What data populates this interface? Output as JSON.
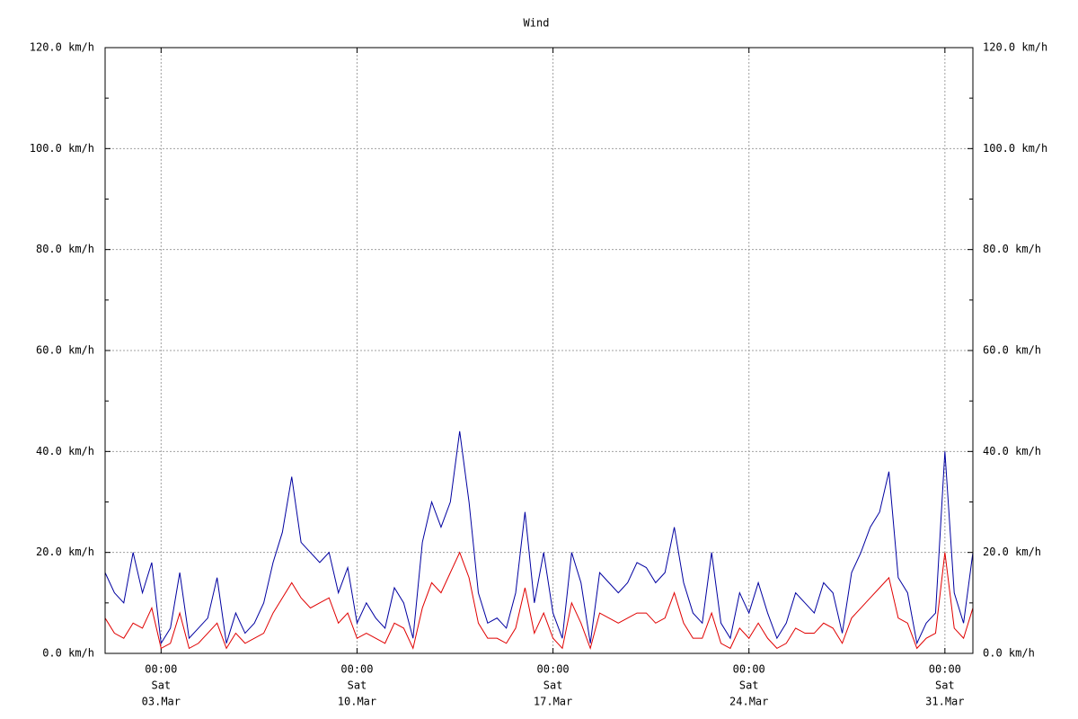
{
  "chart_data": {
    "type": "line",
    "title": "Wind",
    "x": [
      "01.Mar 00:00",
      "01.Mar 08:00",
      "01.Mar 16:00",
      "02.Mar 00:00",
      "02.Mar 08:00",
      "02.Mar 16:00",
      "03.Mar 00:00",
      "03.Mar 08:00",
      "03.Mar 16:00",
      "04.Mar 00:00",
      "04.Mar 08:00",
      "04.Mar 16:00",
      "05.Mar 00:00",
      "05.Mar 08:00",
      "05.Mar 16:00",
      "06.Mar 00:00",
      "06.Mar 08:00",
      "06.Mar 16:00",
      "07.Mar 00:00",
      "07.Mar 08:00",
      "07.Mar 16:00",
      "08.Mar 00:00",
      "08.Mar 08:00",
      "08.Mar 16:00",
      "09.Mar 00:00",
      "09.Mar 08:00",
      "09.Mar 16:00",
      "10.Mar 00:00",
      "10.Mar 08:00",
      "10.Mar 16:00",
      "11.Mar 00:00",
      "11.Mar 08:00",
      "11.Mar 16:00",
      "12.Mar 00:00",
      "12.Mar 08:00",
      "12.Mar 16:00",
      "13.Mar 00:00",
      "13.Mar 08:00",
      "13.Mar 16:00",
      "14.Mar 00:00",
      "14.Mar 08:00",
      "14.Mar 16:00",
      "15.Mar 00:00",
      "15.Mar 08:00",
      "15.Mar 16:00",
      "16.Mar 00:00",
      "16.Mar 08:00",
      "16.Mar 16:00",
      "17.Mar 00:00",
      "17.Mar 08:00",
      "17.Mar 16:00",
      "18.Mar 00:00",
      "18.Mar 08:00",
      "18.Mar 16:00",
      "19.Mar 00:00",
      "19.Mar 08:00",
      "19.Mar 16:00",
      "20.Mar 00:00",
      "20.Mar 08:00",
      "20.Mar 16:00",
      "21.Mar 00:00",
      "21.Mar 08:00",
      "21.Mar 16:00",
      "22.Mar 00:00",
      "22.Mar 08:00",
      "22.Mar 16:00",
      "23.Mar 00:00",
      "23.Mar 08:00",
      "23.Mar 16:00",
      "24.Mar 00:00",
      "24.Mar 08:00",
      "24.Mar 16:00",
      "25.Mar 00:00",
      "25.Mar 08:00",
      "25.Mar 16:00",
      "26.Mar 00:00",
      "26.Mar 08:00",
      "26.Mar 16:00",
      "27.Mar 00:00",
      "27.Mar 08:00",
      "27.Mar 16:00",
      "28.Mar 00:00",
      "28.Mar 08:00",
      "28.Mar 16:00",
      "29.Mar 00:00",
      "29.Mar 08:00",
      "29.Mar 16:00",
      "30.Mar 00:00",
      "30.Mar 08:00",
      "30.Mar 16:00",
      "31.Mar 00:00",
      "31.Mar 08:00",
      "31.Mar 16:00",
      "01.Apr 00:00"
    ],
    "series": [
      {
        "color": "#0000a0",
        "values": [
          16,
          12,
          10,
          20,
          12,
          18,
          2,
          5,
          16,
          3,
          5,
          7,
          15,
          2,
          8,
          4,
          6,
          10,
          18,
          24,
          35,
          22,
          20,
          18,
          20,
          12,
          17,
          6,
          10,
          7,
          5,
          13,
          10,
          3,
          22,
          30,
          25,
          30,
          44,
          30,
          12,
          6,
          7,
          5,
          12,
          28,
          10,
          20,
          8,
          3,
          20,
          14,
          2,
          16,
          14,
          12,
          14,
          18,
          17,
          14,
          16,
          25,
          14,
          8,
          6,
          20,
          6,
          3,
          12,
          8,
          14,
          8,
          3,
          6,
          12,
          10,
          8,
          14,
          12,
          4,
          16,
          20,
          25,
          28,
          36,
          15,
          12,
          2,
          6,
          8,
          40,
          12,
          6,
          20
        ]
      },
      {
        "color": "#e00000",
        "values": [
          7,
          4,
          3,
          6,
          5,
          9,
          1,
          2,
          8,
          1,
          2,
          4,
          6,
          1,
          4,
          2,
          3,
          4,
          8,
          11,
          14,
          11,
          9,
          10,
          11,
          6,
          8,
          3,
          4,
          3,
          2,
          6,
          5,
          1,
          9,
          14,
          12,
          16,
          20,
          15,
          6,
          3,
          3,
          2,
          5,
          13,
          4,
          8,
          3,
          1,
          10,
          6,
          1,
          8,
          7,
          6,
          7,
          8,
          8,
          6,
          7,
          12,
          6,
          3,
          3,
          8,
          2,
          1,
          5,
          3,
          6,
          3,
          1,
          2,
          5,
          4,
          4,
          6,
          5,
          2,
          7,
          9,
          11,
          13,
          15,
          7,
          6,
          1,
          3,
          4,
          20,
          5,
          3,
          9
        ]
      }
    ],
    "xlim": [
      "01.Mar 00:00",
      "01.Apr 00:00"
    ],
    "xticks": [
      {
        "value": "03.Mar 00:00",
        "label": [
          "00:00",
          "Sat",
          "03.Mar"
        ]
      },
      {
        "value": "10.Mar 00:00",
        "label": [
          "00:00",
          "Sat",
          "10.Mar"
        ]
      },
      {
        "value": "17.Mar 00:00",
        "label": [
          "00:00",
          "Sat",
          "17.Mar"
        ]
      },
      {
        "value": "24.Mar 00:00",
        "label": [
          "00:00",
          "Sat",
          "24.Mar"
        ]
      },
      {
        "value": "31.Mar 00:00",
        "label": [
          "00:00",
          "Sat",
          "31.Mar"
        ]
      }
    ],
    "ylim": [
      0,
      120
    ],
    "yticks": [
      {
        "value": 0,
        "label": "0.0 km/h"
      },
      {
        "value": 20,
        "label": "20.0 km/h"
      },
      {
        "value": 40,
        "label": "40.0 km/h"
      },
      {
        "value": 60,
        "label": "60.0 km/h"
      },
      {
        "value": 80,
        "label": "80.0 km/h"
      },
      {
        "value": 100,
        "label": "100.0 km/h"
      },
      {
        "value": 120,
        "label": "120.0 km/h"
      }
    ],
    "yminorticks": [
      10,
      30,
      50,
      70,
      90,
      110
    ],
    "grid": true
  }
}
